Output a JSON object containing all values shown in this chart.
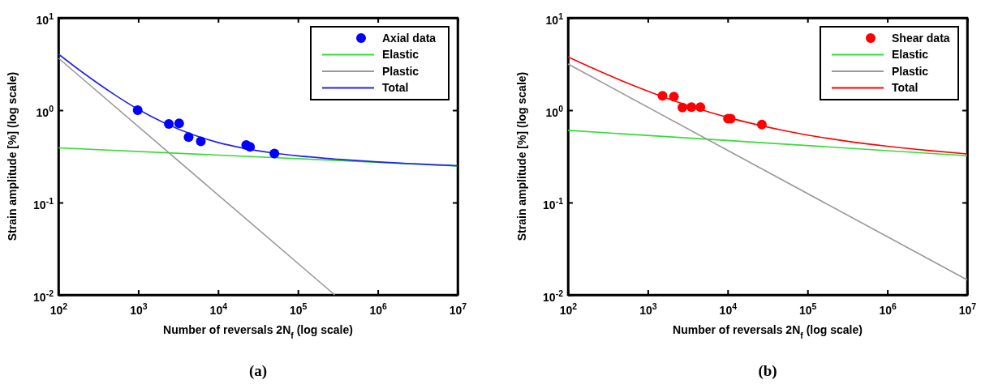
{
  "chart_data": [
    {
      "type": "line",
      "xlabel": "Number of reversals 2N$_{f}$ (log scale)",
      "ylabel": "Strain amplitude [%] (log scale)",
      "log": "xy",
      "legend": "top right",
      "grid": false,
      "xlim": [
        100,
        10000000
      ],
      "xticks": [
        {
          "value": 100,
          "label": "10$^{2}$"
        },
        {
          "value": 1000,
          "label": "10$^{3}$"
        },
        {
          "value": 10000,
          "label": "10$^{4}$"
        },
        {
          "value": 100000,
          "label": "10$^{5}$"
        },
        {
          "value": 1000000,
          "label": "10$^{6}$"
        },
        {
          "value": 10000000,
          "label": "10$^{7}$"
        }
      ],
      "ylim": [
        0.01,
        10
      ],
      "yticks": [
        {
          "value": 0.01,
          "label": "10$^{-2}$"
        },
        {
          "value": 0.1,
          "label": "10$^{-1}$"
        },
        {
          "value": 1,
          "label": "10$^{0}$"
        },
        {
          "value": 10,
          "label": "10$^{1}$"
        }
      ],
      "series": [
        {
          "name": "Axial data",
          "type": "scatter",
          "marker": "circle",
          "color": "#0000ff",
          "x": [
            984,
            2415,
            3250,
            4270,
            6070,
            22500,
            25100,
            50700
          ],
          "values": [
            1.0,
            0.71,
            0.72,
            0.51,
            0.46,
            0.42,
            0.4,
            0.34
          ]
        },
        {
          "name": "Elastic",
          "color": "#33dd33",
          "x": [
            100,
            10000000
          ],
          "values": [
            0.391,
            0.249
          ]
        },
        {
          "name": "Plastic",
          "color": "#999999",
          "x": [
            100,
            289000
          ],
          "values": [
            3.66,
            0.01
          ]
        },
        {
          "name": "Total",
          "color": "#2222ee",
          "x": [
            100,
            200,
            500,
            1000,
            2000,
            5000,
            10000,
            20000,
            50000,
            100000,
            316000,
            1000000,
            10000000
          ],
          "values": [
            4.05,
            2.57,
            1.48,
            1.02,
            0.746,
            0.537,
            0.447,
            0.39,
            0.343,
            0.32,
            0.294,
            0.275,
            0.25
          ]
        }
      ],
      "annotations": [
        "(a)"
      ]
    },
    {
      "type": "line",
      "xlabel": "Number of reversals 2N$_{f}$ (log scale)",
      "ylabel": "Strain amplitude [%] (log scale)",
      "log": "xy",
      "legend": "top right",
      "grid": false,
      "xlim": [
        100,
        10000000
      ],
      "xticks": [
        {
          "value": 100,
          "label": "10$^{2}$"
        },
        {
          "value": 1000,
          "label": "10$^{3}$"
        },
        {
          "value": 10000,
          "label": "10$^{4}$"
        },
        {
          "value": 100000,
          "label": "10$^{5}$"
        },
        {
          "value": 1000000,
          "label": "10$^{6}$"
        },
        {
          "value": 10000000,
          "label": "10$^{7}$"
        }
      ],
      "ylim": [
        0.01,
        10
      ],
      "yticks": [
        {
          "value": 0.01,
          "label": "10$^{-2}$"
        },
        {
          "value": 0.1,
          "label": "10$^{-1}$"
        },
        {
          "value": 1,
          "label": "10$^{0}$"
        },
        {
          "value": 10,
          "label": "10$^{1}$"
        }
      ],
      "series": [
        {
          "name": "Shear data",
          "type": "scatter",
          "marker": "circle",
          "color": "#ff0000",
          "x": [
            1528,
            2120,
            2710,
            3520,
            4550,
            10100,
            10900,
            26800
          ],
          "values": [
            1.43,
            1.4,
            1.07,
            1.08,
            1.08,
            0.81,
            0.81,
            0.7
          ]
        },
        {
          "name": "Elastic",
          "color": "#33dd33",
          "x": [
            100,
            10000000
          ],
          "values": [
            0.605,
            0.321
          ]
        },
        {
          "name": "Plastic",
          "color": "#999999",
          "x": [
            100,
            10000000
          ],
          "values": [
            3.16,
            0.01455
          ]
        },
        {
          "name": "Total",
          "color": "#ff0000",
          "x": [
            100,
            200,
            500,
            1000,
            2000,
            5000,
            10000,
            20000,
            50000,
            100000,
            316000,
            1000000,
            3160000,
            10000000
          ],
          "values": [
            3.77,
            2.87,
            2.04,
            1.61,
            1.29,
            0.996,
            0.836,
            0.718,
            0.603,
            0.538,
            0.461,
            0.407,
            0.367,
            0.336
          ]
        }
      ],
      "annotations": [
        "(b)"
      ]
    }
  ]
}
